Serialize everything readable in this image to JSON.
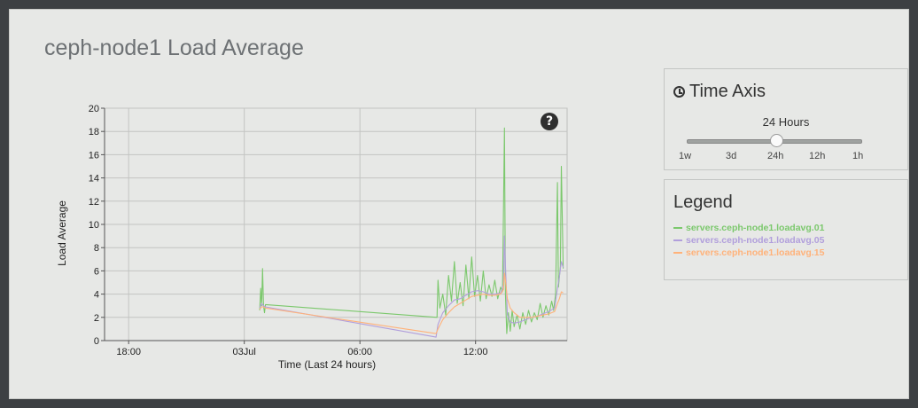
{
  "page": {
    "title": "ceph-node1 Load Average"
  },
  "help": {
    "icon": "question-circle-icon",
    "glyph": "?"
  },
  "time_axis": {
    "title": "Time Axis",
    "icon": "clock-icon",
    "selected_range": "24 Hours",
    "ticks": [
      "1w",
      "3d",
      "24h",
      "12h",
      "1h"
    ],
    "selected_index": 2
  },
  "legend": {
    "title": "Legend",
    "items": [
      {
        "label": "servers.ceph-node1.loadavg.01",
        "color": "#7bc86c"
      },
      {
        "label": "servers.ceph-node1.loadavg.05",
        "color": "#b19fdc"
      },
      {
        "label": "servers.ceph-node1.loadavg.15",
        "color": "#ffb27a"
      }
    ]
  },
  "chart_data": {
    "type": "line",
    "xlabel": "Time (Last 24 hours)",
    "ylabel": "Load Average",
    "ylim": [
      0,
      20
    ],
    "yticks": [
      0,
      2,
      4,
      6,
      8,
      10,
      12,
      14,
      16,
      18,
      20
    ],
    "xlim": [
      16.75,
      40.75
    ],
    "xticks": [
      {
        "value": 18,
        "label": "18:00"
      },
      {
        "value": 24,
        "label": "03Jul"
      },
      {
        "value": 30,
        "label": "06:00"
      },
      {
        "value": 36,
        "label": "12:00"
      }
    ],
    "grid": true,
    "series": [
      {
        "name": "servers.ceph-node1.loadavg.01",
        "color": "#7bc86c",
        "points": [
          [
            24.8,
            2.6
          ],
          [
            24.85,
            4.5
          ],
          [
            24.9,
            3.0
          ],
          [
            24.95,
            6.2
          ],
          [
            25.0,
            3.0
          ],
          [
            25.05,
            2.4
          ],
          [
            25.1,
            3.1
          ],
          [
            34.0,
            2.0
          ],
          [
            34.05,
            5.2
          ],
          [
            34.15,
            2.8
          ],
          [
            34.3,
            4.0
          ],
          [
            34.45,
            2.2
          ],
          [
            34.6,
            5.6
          ],
          [
            34.75,
            3.4
          ],
          [
            34.9,
            6.8
          ],
          [
            35.05,
            3.2
          ],
          [
            35.2,
            5.0
          ],
          [
            35.35,
            3.0
          ],
          [
            35.5,
            6.5
          ],
          [
            35.65,
            3.6
          ],
          [
            35.8,
            7.2
          ],
          [
            35.95,
            3.8
          ],
          [
            36.1,
            5.6
          ],
          [
            36.25,
            3.4
          ],
          [
            36.4,
            6.0
          ],
          [
            36.55,
            3.6
          ],
          [
            36.7,
            4.8
          ],
          [
            36.85,
            3.8
          ],
          [
            37.0,
            5.2
          ],
          [
            37.15,
            3.6
          ],
          [
            37.3,
            4.6
          ],
          [
            37.4,
            4.2
          ],
          [
            37.5,
            18.3
          ],
          [
            37.55,
            4.0
          ],
          [
            37.62,
            0.6
          ],
          [
            37.7,
            2.4
          ],
          [
            37.8,
            0.8
          ],
          [
            37.9,
            2.6
          ],
          [
            38.0,
            1.2
          ],
          [
            38.15,
            2.2
          ],
          [
            38.3,
            1.0
          ],
          [
            38.45,
            2.4
          ],
          [
            38.6,
            1.4
          ],
          [
            38.75,
            2.6
          ],
          [
            38.9,
            1.6
          ],
          [
            39.05,
            2.4
          ],
          [
            39.2,
            1.8
          ],
          [
            39.35,
            3.2
          ],
          [
            39.5,
            2.0
          ],
          [
            39.65,
            3.0
          ],
          [
            39.8,
            2.2
          ],
          [
            39.95,
            3.4
          ],
          [
            40.05,
            2.6
          ],
          [
            40.15,
            4.0
          ],
          [
            40.25,
            13.6
          ],
          [
            40.3,
            4.6
          ],
          [
            40.4,
            6.4
          ],
          [
            40.45,
            15.0
          ],
          [
            40.55,
            6.2
          ]
        ]
      },
      {
        "name": "servers.ceph-node1.loadavg.05",
        "color": "#b19fdc",
        "points": [
          [
            24.8,
            2.8
          ],
          [
            24.9,
            3.2
          ],
          [
            25.0,
            3.0
          ],
          [
            25.1,
            2.9
          ],
          [
            33.95,
            0.3
          ],
          [
            34.05,
            1.4
          ],
          [
            34.3,
            2.4
          ],
          [
            34.6,
            3.0
          ],
          [
            34.9,
            3.5
          ],
          [
            35.2,
            3.6
          ],
          [
            35.5,
            3.9
          ],
          [
            35.8,
            4.2
          ],
          [
            36.1,
            4.3
          ],
          [
            36.4,
            4.2
          ],
          [
            36.7,
            4.0
          ],
          [
            37.0,
            4.0
          ],
          [
            37.3,
            4.1
          ],
          [
            37.45,
            4.8
          ],
          [
            37.5,
            9.0
          ],
          [
            37.55,
            6.5
          ],
          [
            37.65,
            2.2
          ],
          [
            37.8,
            1.6
          ],
          [
            38.0,
            1.5
          ],
          [
            38.3,
            1.6
          ],
          [
            38.6,
            1.8
          ],
          [
            38.9,
            2.0
          ],
          [
            39.2,
            2.1
          ],
          [
            39.5,
            2.3
          ],
          [
            39.8,
            2.5
          ],
          [
            40.1,
            2.8
          ],
          [
            40.25,
            4.5
          ],
          [
            40.35,
            5.5
          ],
          [
            40.45,
            6.8
          ],
          [
            40.55,
            6.3
          ]
        ]
      },
      {
        "name": "servers.ceph-node1.loadavg.15",
        "color": "#ffb27a",
        "points": [
          [
            24.8,
            2.7
          ],
          [
            24.9,
            2.9
          ],
          [
            25.0,
            2.9
          ],
          [
            25.1,
            2.8
          ],
          [
            33.95,
            0.6
          ],
          [
            34.05,
            1.0
          ],
          [
            34.3,
            1.8
          ],
          [
            34.6,
            2.4
          ],
          [
            34.9,
            2.9
          ],
          [
            35.2,
            3.2
          ],
          [
            35.5,
            3.5
          ],
          [
            35.8,
            3.8
          ],
          [
            36.1,
            3.9
          ],
          [
            36.4,
            4.0
          ],
          [
            36.7,
            3.9
          ],
          [
            37.0,
            3.9
          ],
          [
            37.3,
            4.0
          ],
          [
            37.45,
            4.4
          ],
          [
            37.5,
            5.8
          ],
          [
            37.55,
            5.2
          ],
          [
            37.65,
            3.6
          ],
          [
            37.8,
            2.8
          ],
          [
            38.0,
            2.4
          ],
          [
            38.3,
            2.0
          ],
          [
            38.6,
            2.0
          ],
          [
            38.9,
            2.0
          ],
          [
            39.2,
            2.1
          ],
          [
            39.5,
            2.2
          ],
          [
            39.8,
            2.3
          ],
          [
            40.1,
            2.5
          ],
          [
            40.25,
            3.2
          ],
          [
            40.35,
            3.6
          ],
          [
            40.45,
            4.2
          ],
          [
            40.55,
            4.1
          ]
        ]
      }
    ]
  }
}
